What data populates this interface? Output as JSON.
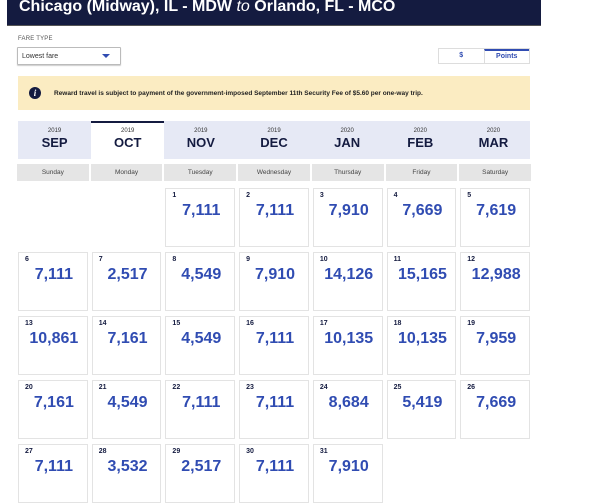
{
  "header": {
    "origin": "Chicago (Midway), IL - MDW",
    "to": "to",
    "destination": "Orlando, FL - MCO"
  },
  "fare_type": {
    "label": "FARE TYPE",
    "selected": "Lowest fare"
  },
  "currency_toggle": {
    "options": [
      "$",
      "Points"
    ],
    "selected": "Points"
  },
  "notice": {
    "icon": "info-icon",
    "text": "Reward travel is subject to payment of the government-imposed September 11th Security Fee of $5.60 per one-way trip."
  },
  "months": [
    {
      "year": "2019",
      "month": "SEP"
    },
    {
      "year": "2019",
      "month": "OCT",
      "active": true
    },
    {
      "year": "2019",
      "month": "NOV"
    },
    {
      "year": "2019",
      "month": "DEC"
    },
    {
      "year": "2020",
      "month": "JAN"
    },
    {
      "year": "2020",
      "month": "FEB"
    },
    {
      "year": "2020",
      "month": "MAR"
    }
  ],
  "weekdays": [
    "Sunday",
    "Monday",
    "Tuesday",
    "Wednesday",
    "Thursday",
    "Friday",
    "Saturday"
  ],
  "calendar": {
    "first_weekday_index": 2,
    "days": [
      {
        "day": "1",
        "price": "7,111"
      },
      {
        "day": "2",
        "price": "7,111"
      },
      {
        "day": "3",
        "price": "7,910"
      },
      {
        "day": "4",
        "price": "7,669"
      },
      {
        "day": "5",
        "price": "7,619"
      },
      {
        "day": "6",
        "price": "7,111"
      },
      {
        "day": "7",
        "price": "2,517"
      },
      {
        "day": "8",
        "price": "4,549"
      },
      {
        "day": "9",
        "price": "7,910"
      },
      {
        "day": "10",
        "price": "14,126"
      },
      {
        "day": "11",
        "price": "15,165"
      },
      {
        "day": "12",
        "price": "12,988"
      },
      {
        "day": "13",
        "price": "10,861"
      },
      {
        "day": "14",
        "price": "7,161"
      },
      {
        "day": "15",
        "price": "4,549"
      },
      {
        "day": "16",
        "price": "7,111"
      },
      {
        "day": "17",
        "price": "10,135"
      },
      {
        "day": "18",
        "price": "10,135"
      },
      {
        "day": "19",
        "price": "7,959"
      },
      {
        "day": "20",
        "price": "7,161"
      },
      {
        "day": "21",
        "price": "4,549"
      },
      {
        "day": "22",
        "price": "7,111"
      },
      {
        "day": "23",
        "price": "7,111"
      },
      {
        "day": "24",
        "price": "8,684"
      },
      {
        "day": "25",
        "price": "5,419"
      },
      {
        "day": "26",
        "price": "7,669"
      },
      {
        "day": "27",
        "price": "7,111"
      },
      {
        "day": "28",
        "price": "3,532"
      },
      {
        "day": "29",
        "price": "2,517"
      },
      {
        "day": "30",
        "price": "7,111"
      },
      {
        "day": "31",
        "price": "7,910"
      }
    ]
  }
}
